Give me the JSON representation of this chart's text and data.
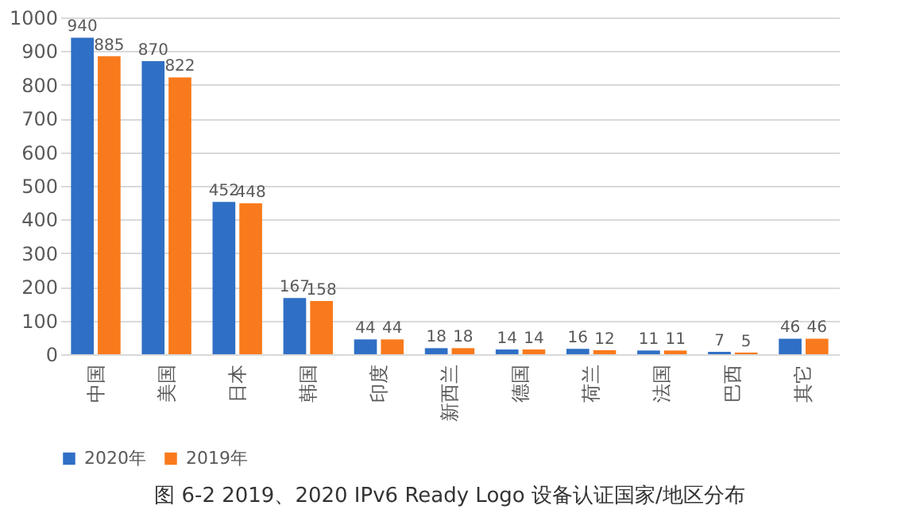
{
  "chart_data": {
    "type": "bar",
    "title": "图 6-2 2019、2020 IPv6 Ready Logo 设备认证国家/地区分布",
    "categories": [
      "中国",
      "美国",
      "日本",
      "韩国",
      "印度",
      "新西兰",
      "德国",
      "荷兰",
      "法国",
      "巴西",
      "其它"
    ],
    "series": [
      {
        "name": "2020年",
        "color": "#2f6fc5",
        "values": [
          940,
          870,
          452,
          167,
          44,
          18,
          14,
          16,
          11,
          7,
          46
        ]
      },
      {
        "name": "2019年",
        "color": "#f97a1c",
        "values": [
          885,
          822,
          448,
          158,
          44,
          18,
          14,
          12,
          11,
          5,
          46
        ]
      }
    ],
    "ylim": [
      0,
      1000
    ],
    "yticks": [
      0,
      100,
      200,
      300,
      400,
      500,
      600,
      700,
      800,
      900,
      1000
    ],
    "grid": "y",
    "legend": "bottom",
    "data_labels": true
  }
}
